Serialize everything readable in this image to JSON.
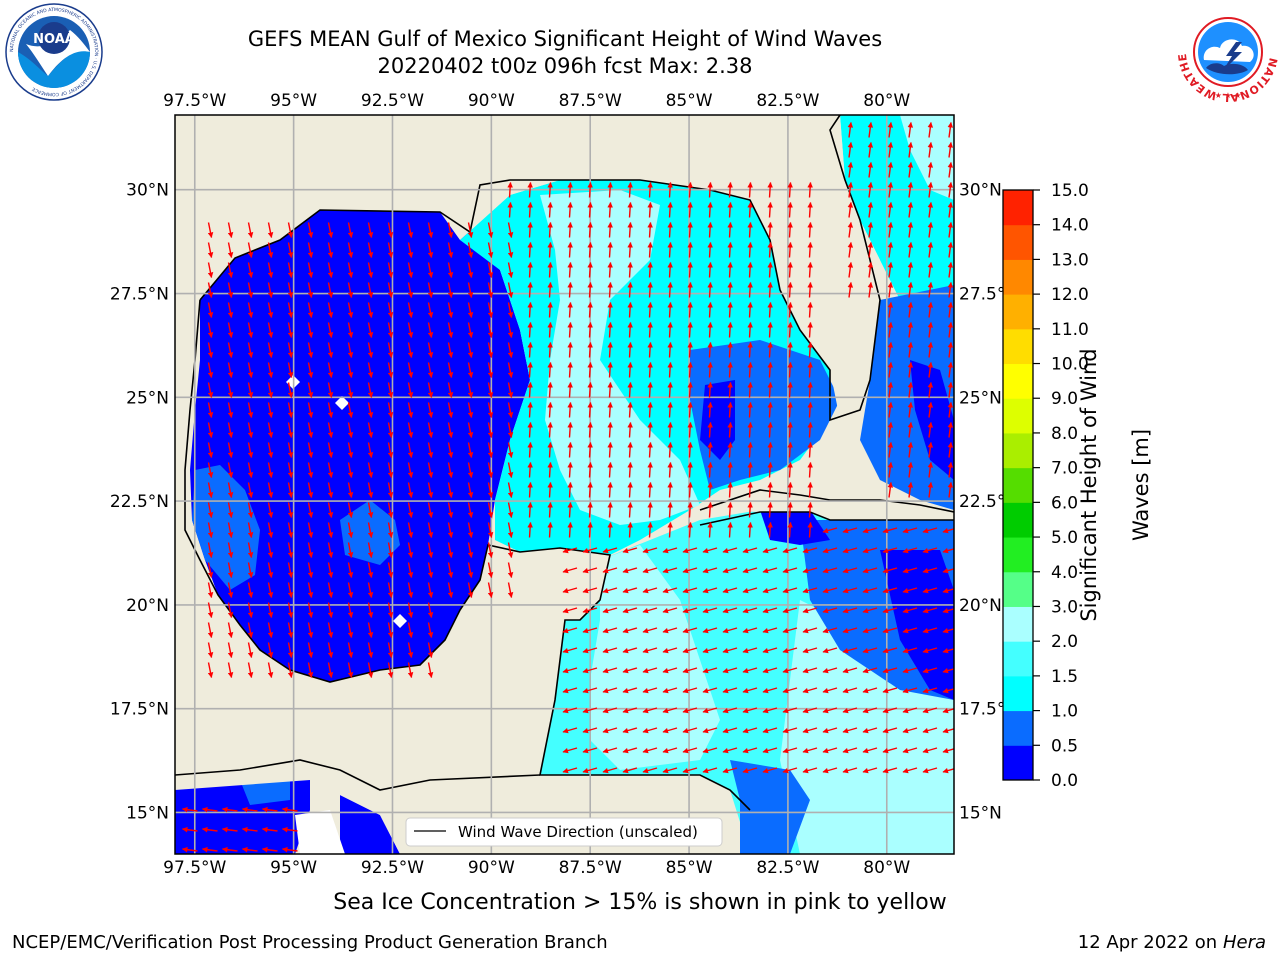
{
  "header": {
    "title_line1": "GEFS MEAN Gulf of Mexico Significant Height of Wind Waves",
    "title_line2": "20220402 t00z 096h fcst   Max: 2.38"
  },
  "logos": {
    "left": {
      "icon": "noaa-logo-icon",
      "text": "NOAA",
      "ring_text": "NATIONAL OCEANIC AND ATMOSPHERIC ADMINISTRATION · U.S. DEPARTMENT OF COMMERCE",
      "color": "#1a5fb4"
    },
    "right": {
      "icon": "nws-logo-icon",
      "ring_text": "NATIONAL WEATHER SERVICE",
      "color": "#e01b24"
    }
  },
  "map": {
    "lon_ticks": [
      "97.5°W",
      "95°W",
      "92.5°W",
      "90°W",
      "87.5°W",
      "85°W",
      "82.5°W",
      "80°W"
    ],
    "lon_values": [
      -97.5,
      -95,
      -92.5,
      -90,
      -87.5,
      -85,
      -82.5,
      -80
    ],
    "lat_ticks": [
      "30°N",
      "27.5°N",
      "25°N",
      "22.5°N",
      "20°N",
      "17.5°N",
      "15°N"
    ],
    "lat_values": [
      30,
      27.5,
      25,
      22.5,
      20,
      17.5,
      15
    ],
    "lon_range": [
      -98,
      -78.3
    ],
    "lat_range": [
      14,
      31.8
    ],
    "legend_label": "Wind Wave Direction (unscaled)",
    "land_color": "#efecdc",
    "arrow_color": "#ff0000",
    "grid": true
  },
  "colorbar": {
    "label_line1": "Significant Height of Wind",
    "label_line2": "Waves [m]",
    "ticks": [
      "0.0",
      "0.5",
      "1.0",
      "1.5",
      "2.0",
      "3.0",
      "4.0",
      "5.0",
      "6.0",
      "7.0",
      "8.0",
      "9.0",
      "10.0",
      "11.0",
      "12.0",
      "13.0",
      "14.0",
      "15.0"
    ],
    "colors": [
      "#0000ff",
      "#0a6cff",
      "#00ffff",
      "#44ffff",
      "#aaffff",
      "#55ff88",
      "#22ee22",
      "#00cc00",
      "#55dd00",
      "#aaee00",
      "#ddff00",
      "#ffff00",
      "#ffdd00",
      "#ffb000",
      "#ff8800",
      "#ff5500",
      "#ff2200",
      "#ff0000"
    ]
  },
  "notes": {
    "ice": "Sea Ice Concentration > 15% is shown in pink to yellow"
  },
  "footer": {
    "left": "NCEP/EMC/Verification Post Processing Product Generation Branch",
    "right_date": "12 Apr 2022 on ",
    "right_host": "Hera"
  }
}
